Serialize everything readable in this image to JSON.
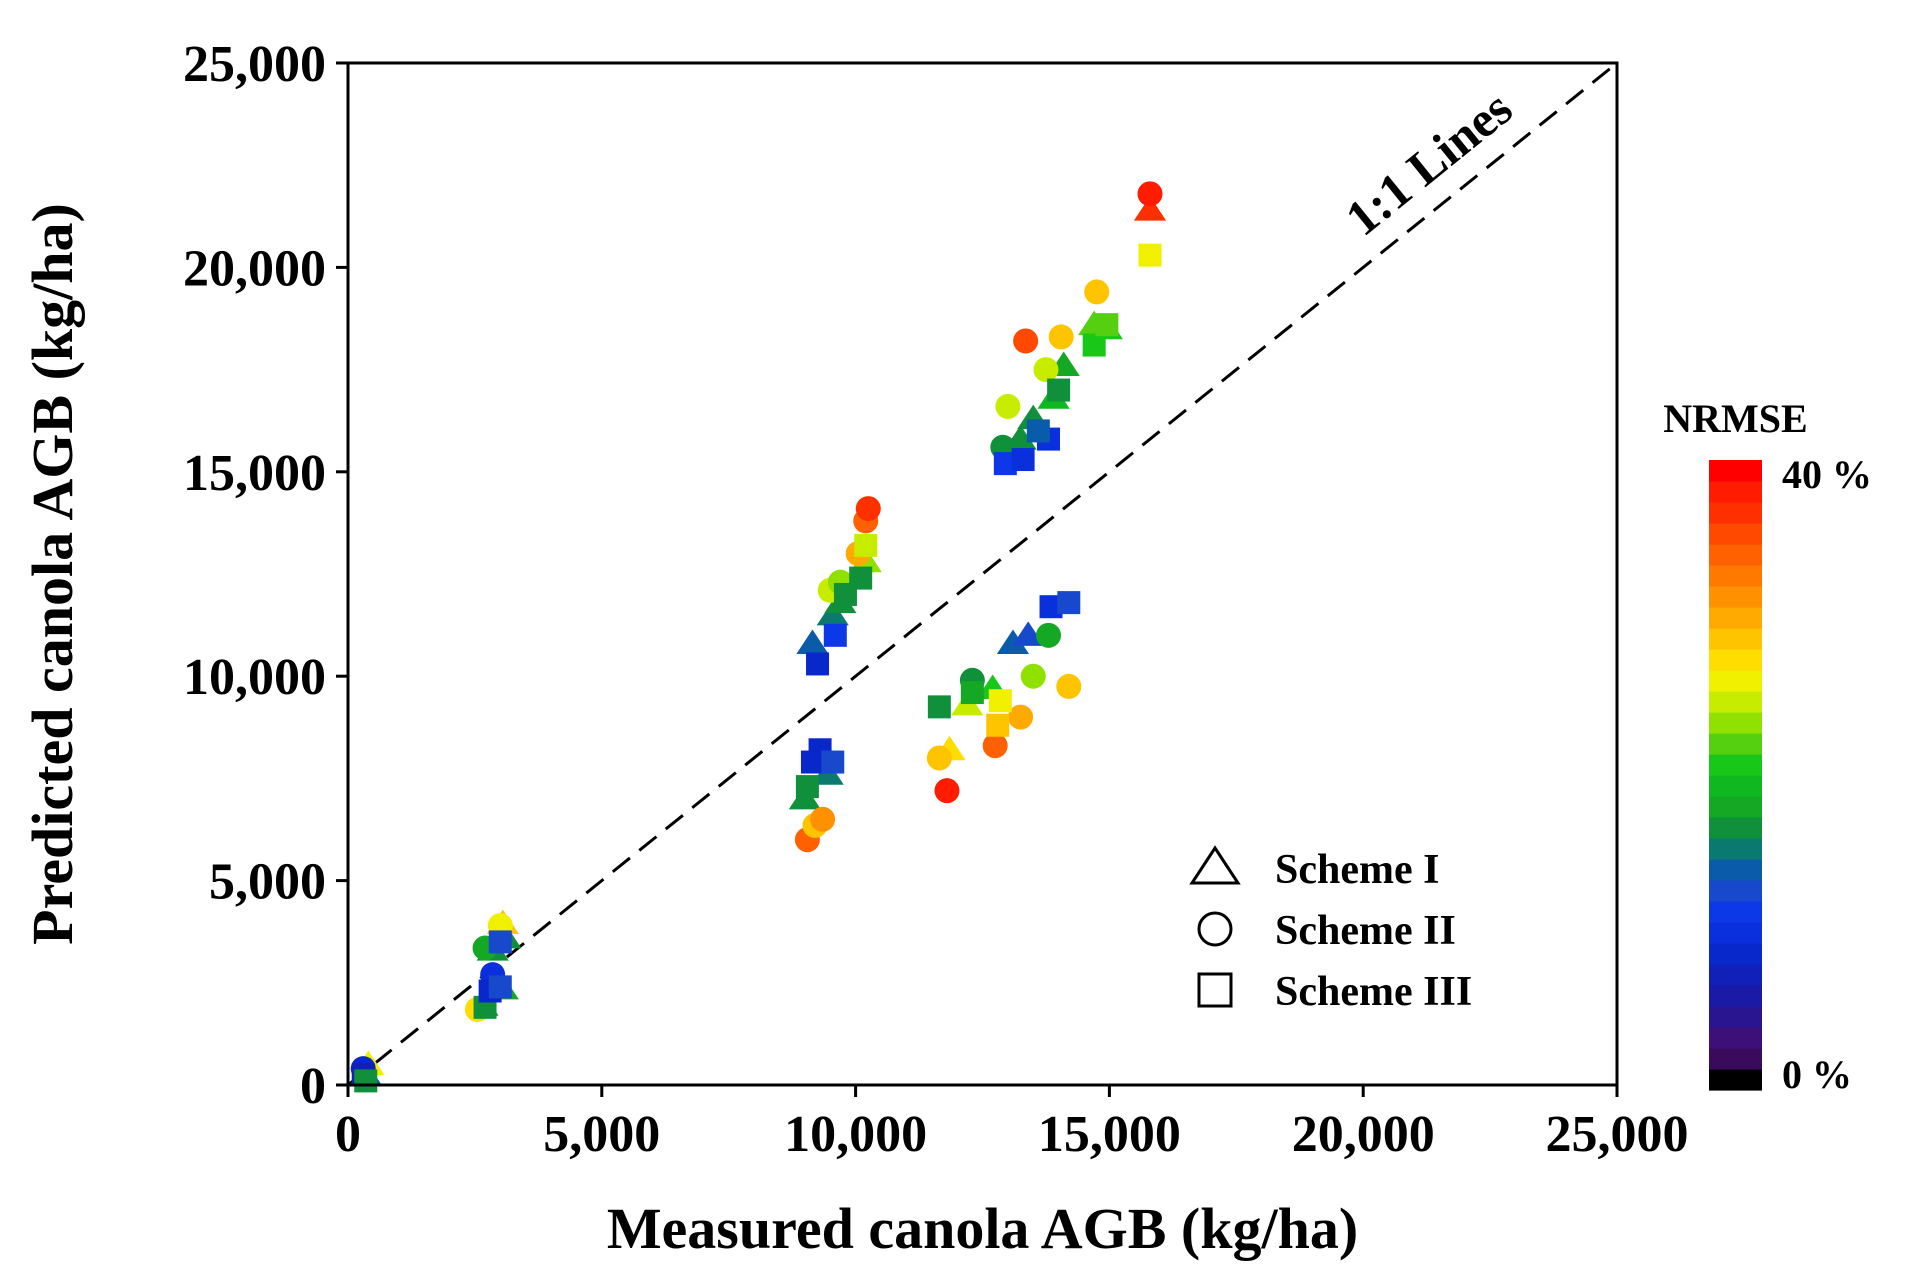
{
  "chart_data": {
    "type": "scatter",
    "title": "",
    "xlabel": "Measured canola AGB (kg/ha)",
    "ylabel": "Predicted canola AGB (kg/ha)",
    "xlim": [
      0,
      25000
    ],
    "ylim": [
      0,
      25000
    ],
    "xticks": [
      {
        "value": 0,
        "label": "0"
      },
      {
        "value": 5000,
        "label": "5,000"
      },
      {
        "value": 10000,
        "label": "10,000"
      },
      {
        "value": 15000,
        "label": "15,000"
      },
      {
        "value": 20000,
        "label": "20,000"
      },
      {
        "value": 25000,
        "label": "25,000"
      }
    ],
    "yticks": [
      {
        "value": 0,
        "label": "0"
      },
      {
        "value": 5000,
        "label": "5,000"
      },
      {
        "value": 10000,
        "label": "10,000"
      },
      {
        "value": 15000,
        "label": "15,000"
      },
      {
        "value": 20000,
        "label": "20,000"
      },
      {
        "value": 25000,
        "label": "25,000"
      }
    ],
    "grid": false,
    "reference_line": {
      "label": "1:1 Lines",
      "from": [
        0,
        0
      ],
      "to": [
        25000,
        25000
      ],
      "style": "dashed"
    },
    "legend": {
      "position": "bottom-right",
      "entries": [
        {
          "name": "Scheme I",
          "marker": "triangle"
        },
        {
          "name": "Scheme II",
          "marker": "circle"
        },
        {
          "name": "Scheme III",
          "marker": "square"
        }
      ]
    },
    "colorbar": {
      "title": "NRMSE",
      "min_label": "0 %",
      "max_label": "40 %",
      "min": 0,
      "max": 40,
      "colors": [
        "#000000",
        "#3a0a5c",
        "#3d0f78",
        "#2a1590",
        "#1a1aa6",
        "#1020b8",
        "#0828cc",
        "#0a30dd",
        "#0c38e8",
        "#1848cc",
        "#0a5caa",
        "#0a7a70",
        "#10903a",
        "#15a825",
        "#10b820",
        "#18c818",
        "#55d010",
        "#90e000",
        "#c8ec00",
        "#f0f000",
        "#ffdd00",
        "#ffc400",
        "#ffaa00",
        "#ff9000",
        "#ff7800",
        "#ff6000",
        "#ff4800",
        "#ff3000",
        "#ff1c00",
        "#ff0000"
      ]
    },
    "series": [
      {
        "name": "Scheme I",
        "marker": "triangle",
        "points": [
          {
            "x": 400,
            "y": 500,
            "nrmse": 26
          },
          {
            "x": 350,
            "y": 250,
            "nrmse": 14
          },
          {
            "x": 2650,
            "y": 1950,
            "nrmse": 17
          },
          {
            "x": 3050,
            "y": 2350,
            "nrmse": 18
          },
          {
            "x": 2850,
            "y": 3300,
            "nrmse": 16
          },
          {
            "x": 3050,
            "y": 3950,
            "nrmse": 28
          },
          {
            "x": 3100,
            "y": 3600,
            "nrmse": 16
          },
          {
            "x": 9000,
            "y": 7000,
            "nrmse": 16
          },
          {
            "x": 9450,
            "y": 7600,
            "nrmse": 15
          },
          {
            "x": 9150,
            "y": 10800,
            "nrmse": 14
          },
          {
            "x": 9550,
            "y": 11500,
            "nrmse": 15
          },
          {
            "x": 9700,
            "y": 11800,
            "nrmse": 17
          },
          {
            "x": 10200,
            "y": 12800,
            "nrmse": 23
          },
          {
            "x": 11850,
            "y": 8200,
            "nrmse": 27
          },
          {
            "x": 12200,
            "y": 9300,
            "nrmse": 24
          },
          {
            "x": 12700,
            "y": 9700,
            "nrmse": 21
          },
          {
            "x": 13100,
            "y": 10800,
            "nrmse": 14
          },
          {
            "x": 13400,
            "y": 11000,
            "nrmse": 13
          },
          {
            "x": 13250,
            "y": 15800,
            "nrmse": 16
          },
          {
            "x": 13500,
            "y": 16300,
            "nrmse": 17
          },
          {
            "x": 13900,
            "y": 16800,
            "nrmse": 19
          },
          {
            "x": 14100,
            "y": 17600,
            "nrmse": 18
          },
          {
            "x": 14700,
            "y": 18600,
            "nrmse": 22
          },
          {
            "x": 14950,
            "y": 18500,
            "nrmse": 20
          },
          {
            "x": 15800,
            "y": 21400,
            "nrmse": 37
          }
        ]
      },
      {
        "name": "Scheme II",
        "marker": "circle",
        "points": [
          {
            "x": 300,
            "y": 400,
            "nrmse": 9
          },
          {
            "x": 2550,
            "y": 1850,
            "nrmse": 27
          },
          {
            "x": 2700,
            "y": 3350,
            "nrmse": 18
          },
          {
            "x": 2850,
            "y": 2700,
            "nrmse": 10
          },
          {
            "x": 3000,
            "y": 3900,
            "nrmse": 26
          },
          {
            "x": 9050,
            "y": 6000,
            "nrmse": 34
          },
          {
            "x": 9200,
            "y": 6350,
            "nrmse": 28
          },
          {
            "x": 9350,
            "y": 6500,
            "nrmse": 31
          },
          {
            "x": 9500,
            "y": 12100,
            "nrmse": 24
          },
          {
            "x": 9700,
            "y": 12300,
            "nrmse": 23
          },
          {
            "x": 10050,
            "y": 13000,
            "nrmse": 30
          },
          {
            "x": 10200,
            "y": 13800,
            "nrmse": 34
          },
          {
            "x": 10250,
            "y": 14100,
            "nrmse": 36
          },
          {
            "x": 11650,
            "y": 8000,
            "nrmse": 29
          },
          {
            "x": 11800,
            "y": 7200,
            "nrmse": 38
          },
          {
            "x": 12300,
            "y": 9900,
            "nrmse": 16
          },
          {
            "x": 12750,
            "y": 8300,
            "nrmse": 34
          },
          {
            "x": 13250,
            "y": 9000,
            "nrmse": 30
          },
          {
            "x": 13500,
            "y": 10000,
            "nrmse": 23
          },
          {
            "x": 13800,
            "y": 11000,
            "nrmse": 18
          },
          {
            "x": 14200,
            "y": 9750,
            "nrmse": 28
          },
          {
            "x": 12900,
            "y": 15600,
            "nrmse": 17
          },
          {
            "x": 13000,
            "y": 16600,
            "nrmse": 24
          },
          {
            "x": 13350,
            "y": 18200,
            "nrmse": 35
          },
          {
            "x": 13750,
            "y": 17500,
            "nrmse": 24
          },
          {
            "x": 14050,
            "y": 18300,
            "nrmse": 29
          },
          {
            "x": 14750,
            "y": 19400,
            "nrmse": 29
          },
          {
            "x": 15800,
            "y": 21800,
            "nrmse": 38
          }
        ]
      },
      {
        "name": "Scheme III",
        "marker": "square",
        "points": [
          {
            "x": 300,
            "y": 250,
            "nrmse": 7
          },
          {
            "x": 350,
            "y": 100,
            "nrmse": 16
          },
          {
            "x": 2700,
            "y": 1900,
            "nrmse": 17
          },
          {
            "x": 2800,
            "y": 2300,
            "nrmse": 9
          },
          {
            "x": 3000,
            "y": 2400,
            "nrmse": 13
          },
          {
            "x": 3000,
            "y": 3500,
            "nrmse": 12
          },
          {
            "x": 9050,
            "y": 7300,
            "nrmse": 17
          },
          {
            "x": 9150,
            "y": 7900,
            "nrmse": 8
          },
          {
            "x": 9300,
            "y": 8200,
            "nrmse": 9
          },
          {
            "x": 9550,
            "y": 7900,
            "nrmse": 13
          },
          {
            "x": 9250,
            "y": 10300,
            "nrmse": 9
          },
          {
            "x": 9600,
            "y": 11000,
            "nrmse": 11
          },
          {
            "x": 9800,
            "y": 12000,
            "nrmse": 17
          },
          {
            "x": 10100,
            "y": 12400,
            "nrmse": 16
          },
          {
            "x": 10200,
            "y": 13200,
            "nrmse": 25
          },
          {
            "x": 11650,
            "y": 9250,
            "nrmse": 17
          },
          {
            "x": 12300,
            "y": 9600,
            "nrmse": 18
          },
          {
            "x": 12800,
            "y": 8800,
            "nrmse": 28
          },
          {
            "x": 12850,
            "y": 9400,
            "nrmse": 26
          },
          {
            "x": 13850,
            "y": 11700,
            "nrmse": 10
          },
          {
            "x": 14200,
            "y": 11800,
            "nrmse": 12
          },
          {
            "x": 12950,
            "y": 15200,
            "nrmse": 11
          },
          {
            "x": 13300,
            "y": 15300,
            "nrmse": 10
          },
          {
            "x": 13800,
            "y": 15800,
            "nrmse": 10
          },
          {
            "x": 13600,
            "y": 16000,
            "nrmse": 14
          },
          {
            "x": 14000,
            "y": 17000,
            "nrmse": 16
          },
          {
            "x": 14700,
            "y": 18100,
            "nrmse": 21
          },
          {
            "x": 14950,
            "y": 18600,
            "nrmse": 22
          },
          {
            "x": 15800,
            "y": 20300,
            "nrmse": 26
          }
        ]
      }
    ]
  }
}
